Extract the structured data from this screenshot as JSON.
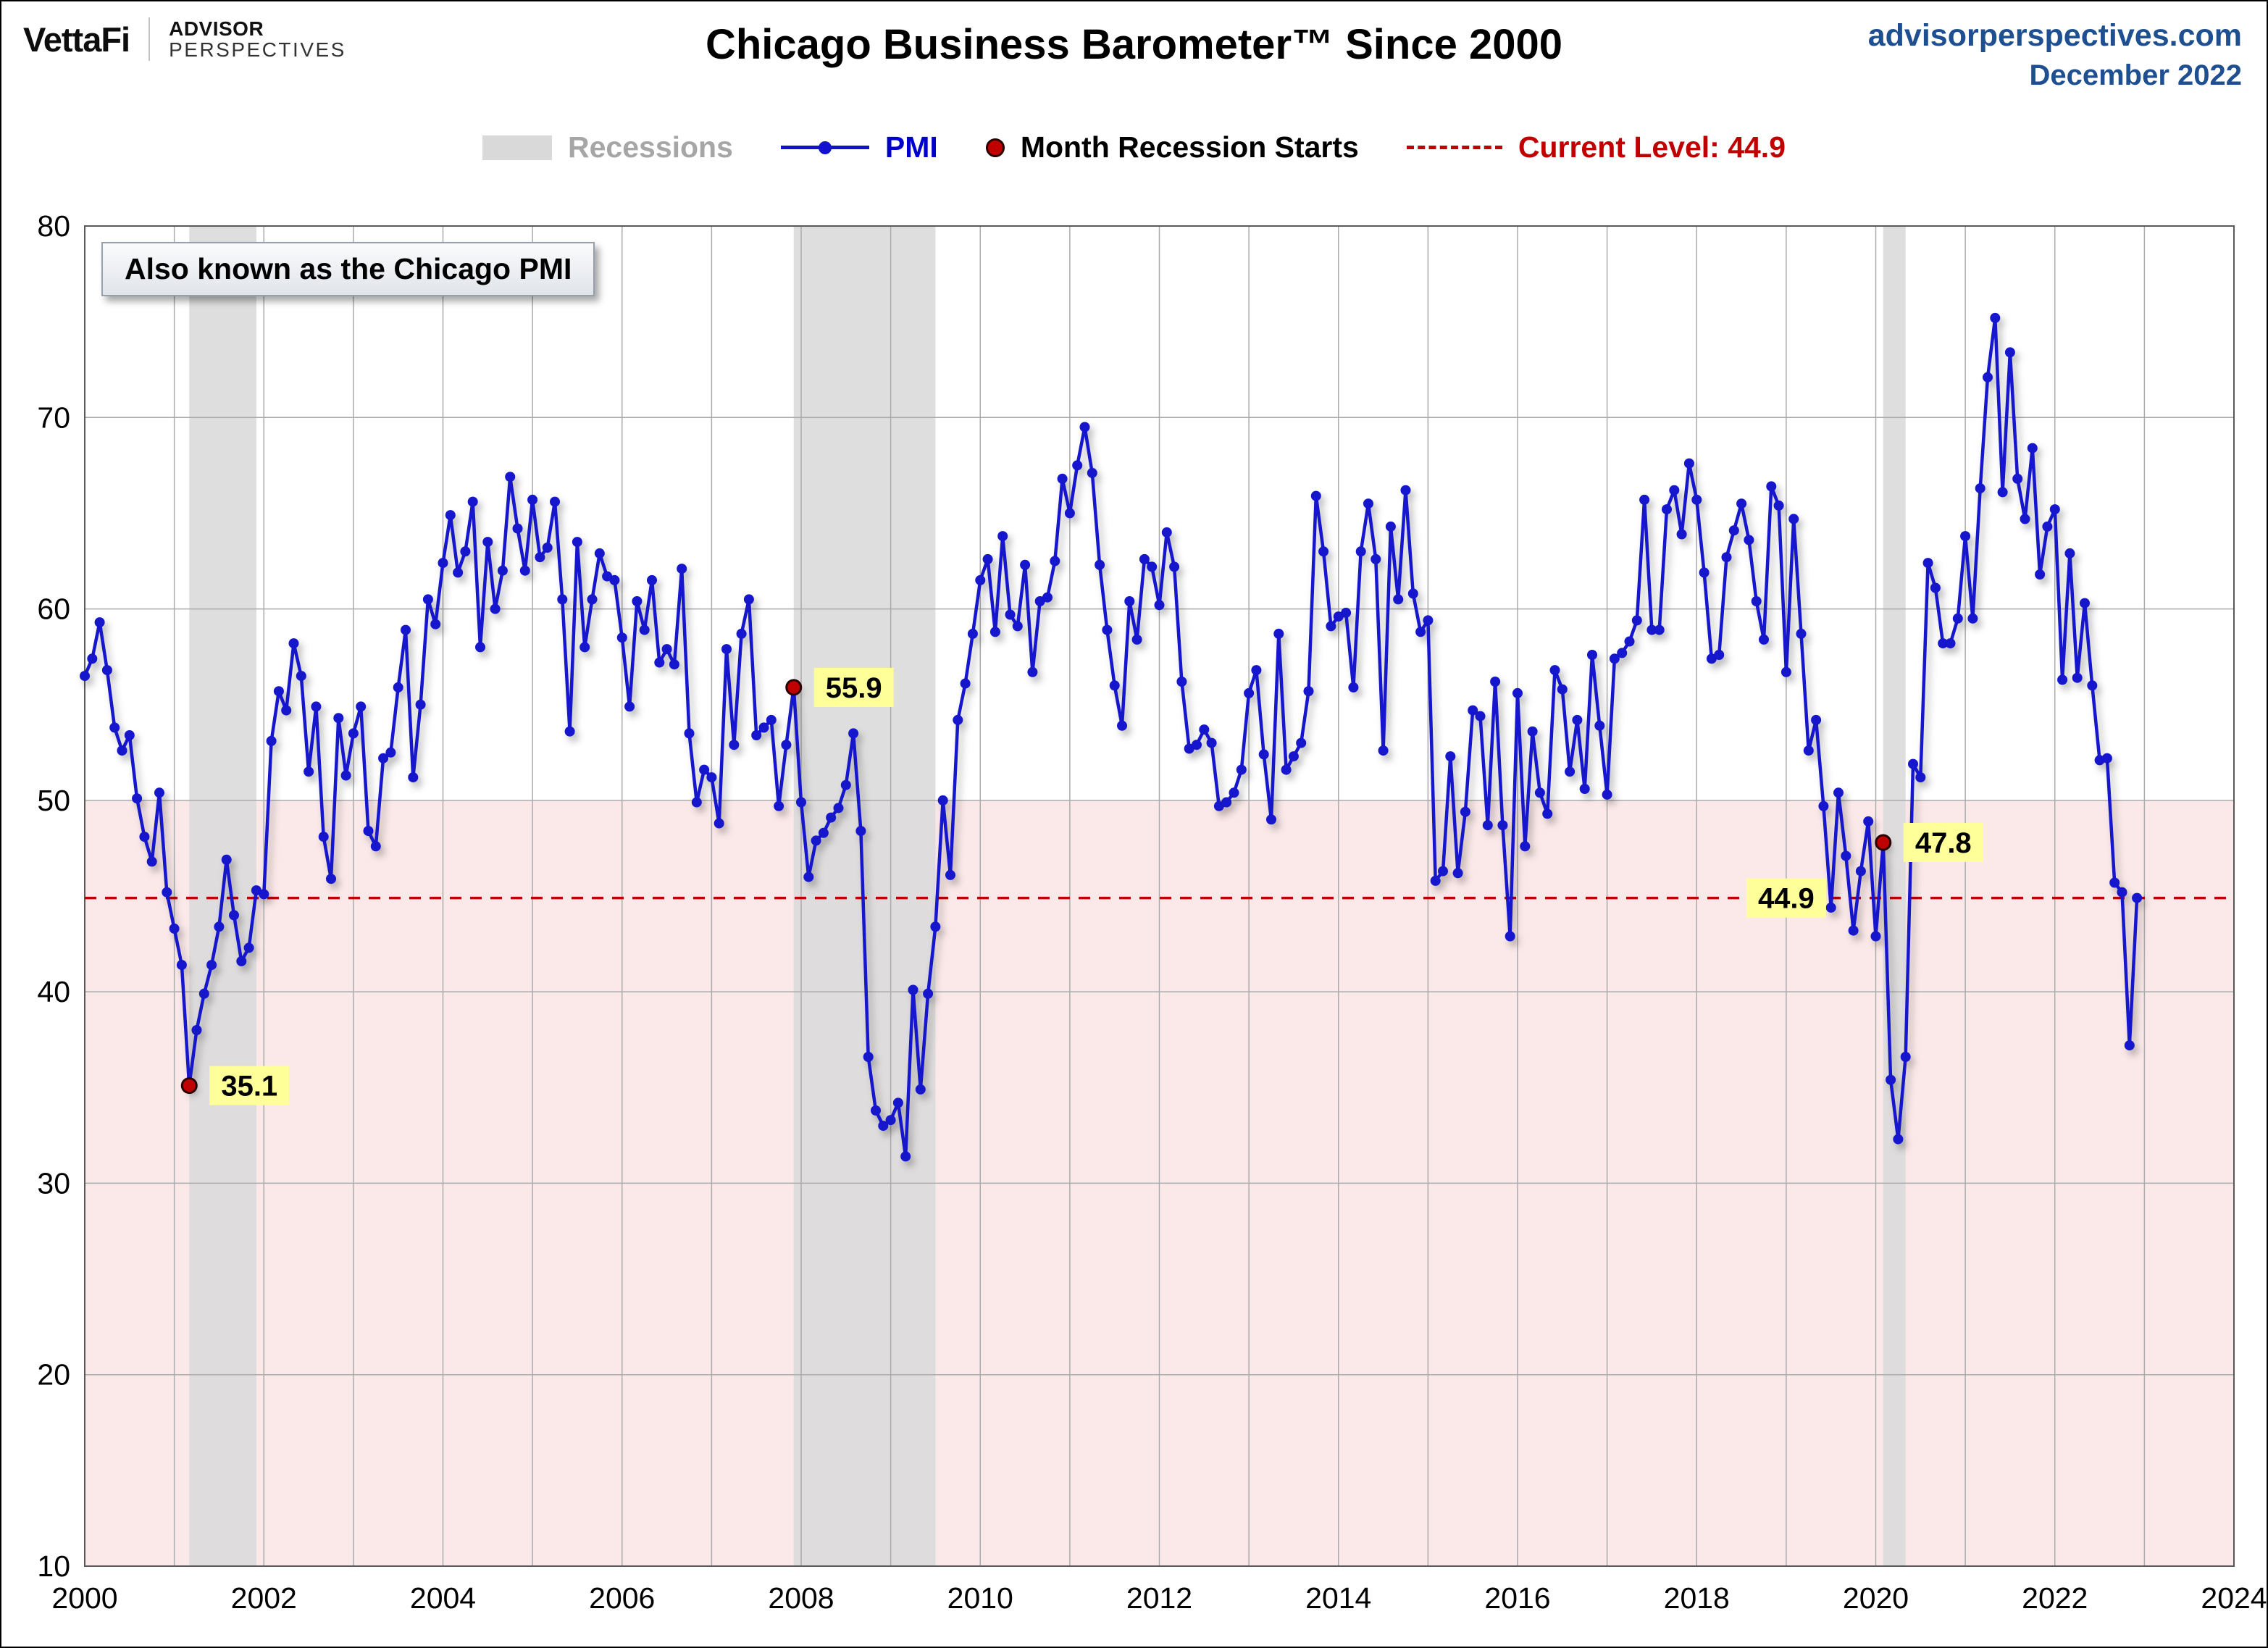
{
  "header": {
    "brand": "VettaFi",
    "brand2_line1": "ADVISOR",
    "brand2_line2": "PERSPECTIVES",
    "title": "Chicago Business Barometer™ Since 2000",
    "site": "advisorperspectives.com",
    "date": "December 2022"
  },
  "legend": {
    "recessions": "Recessions",
    "pmi": "PMI",
    "recession_start": "Month Recession Starts",
    "current_level": "Current Level: 44.9"
  },
  "annotation": "Also known as the Chicago PMI",
  "colors": {
    "line_blue": "#1212cc",
    "legend_blue": "#0000cc",
    "red": "#c00000",
    "dot_edge": "#2a0000",
    "pink_zone": "#fbe9e9",
    "recession_band": "#d9d9d9",
    "grid": "#ababab",
    "frame": "#595959",
    "yellow_tag": "#ffff99",
    "header_blue": "#1d4f91",
    "recessions_gray": "#a6a6a6"
  },
  "chart_data": {
    "type": "line",
    "title": "Chicago Business Barometer™ Since 2000",
    "xlabel": "",
    "ylabel": "",
    "x_range": [
      2000,
      2024
    ],
    "x_ticks": [
      2000,
      2002,
      2004,
      2006,
      2008,
      2010,
      2012,
      2014,
      2016,
      2018,
      2020,
      2022,
      2024
    ],
    "ylim": [
      10,
      80
    ],
    "y_ticks": [
      10,
      20,
      30,
      40,
      50,
      60,
      70,
      80
    ],
    "grid": true,
    "legend_position": "top",
    "below_threshold_shading": {
      "threshold": 50
    },
    "current_level": 44.9,
    "current_level_label": {
      "x": 2019.0,
      "text": "44.9"
    },
    "recessions": [
      [
        2001.167,
        2001.917
      ],
      [
        2007.917,
        2009.5
      ],
      [
        2020.083,
        2020.333
      ]
    ],
    "recession_start_points": [
      {
        "x": 2001.167,
        "y": 35.1,
        "label": "35.1"
      },
      {
        "x": 2007.917,
        "y": 55.9,
        "label": "55.9"
      },
      {
        "x": 2020.083,
        "y": 47.8,
        "label": "47.8"
      }
    ],
    "series": [
      {
        "name": "PMI",
        "start": "2000-01",
        "frequency": "monthly",
        "values": [
          56.5,
          57.4,
          59.3,
          56.8,
          53.8,
          52.6,
          53.4,
          50.1,
          48.1,
          46.8,
          50.4,
          45.2,
          43.3,
          41.4,
          35.1,
          38.0,
          39.9,
          41.4,
          43.4,
          46.9,
          44.0,
          41.6,
          42.3,
          45.3,
          45.1,
          53.1,
          55.7,
          54.7,
          58.2,
          56.5,
          51.5,
          54.9,
          48.1,
          45.9,
          54.3,
          51.3,
          53.5,
          54.9,
          48.4,
          47.6,
          52.2,
          52.5,
          55.9,
          58.9,
          51.2,
          55.0,
          60.5,
          59.2,
          62.4,
          64.9,
          61.9,
          63.0,
          65.6,
          58.0,
          63.5,
          60.0,
          62.0,
          66.9,
          64.2,
          62.0,
          65.7,
          62.7,
          63.2,
          65.6,
          60.5,
          53.6,
          63.5,
          58.0,
          60.5,
          62.9,
          61.7,
          61.5,
          58.5,
          54.9,
          60.4,
          58.9,
          61.5,
          57.2,
          57.9,
          57.1,
          62.1,
          53.5,
          49.9,
          51.6,
          51.2,
          48.8,
          57.9,
          52.9,
          58.7,
          60.5,
          53.4,
          53.8,
          54.2,
          49.7,
          52.9,
          55.9,
          49.9,
          46.0,
          47.9,
          48.3,
          49.1,
          49.6,
          50.8,
          53.5,
          48.4,
          36.6,
          33.8,
          33.0,
          33.3,
          34.2,
          31.4,
          40.1,
          34.9,
          39.9,
          43.4,
          50.0,
          46.1,
          54.2,
          56.1,
          58.7,
          61.5,
          62.6,
          58.8,
          63.8,
          59.7,
          59.1,
          62.3,
          56.7,
          60.4,
          60.6,
          62.5,
          66.8,
          65.0,
          67.5,
          69.5,
          67.1,
          62.3,
          58.9,
          56.0,
          53.9,
          60.4,
          58.4,
          62.6,
          62.2,
          60.2,
          64.0,
          62.2,
          56.2,
          52.7,
          52.9,
          53.7,
          53.0,
          49.7,
          49.9,
          50.4,
          51.6,
          55.6,
          56.8,
          52.4,
          49.0,
          58.7,
          51.6,
          52.3,
          53.0,
          55.7,
          65.9,
          63.0,
          59.1,
          59.6,
          59.8,
          55.9,
          63.0,
          65.5,
          62.6,
          52.6,
          64.3,
          60.5,
          66.2,
          60.8,
          58.8,
          59.4,
          45.8,
          46.3,
          52.3,
          46.2,
          49.4,
          54.7,
          54.4,
          48.7,
          56.2,
          48.7,
          42.9,
          55.6,
          47.6,
          53.6,
          50.4,
          49.3,
          56.8,
          55.8,
          51.5,
          54.2,
          50.6,
          57.6,
          53.9,
          50.3,
          57.4,
          57.7,
          58.3,
          59.4,
          65.7,
          58.9,
          58.9,
          65.2,
          66.2,
          63.9,
          67.6,
          65.7,
          61.9,
          57.4,
          57.6,
          62.7,
          64.1,
          65.5,
          63.6,
          60.4,
          58.4,
          66.4,
          65.4,
          56.7,
          64.7,
          58.7,
          52.6,
          54.2,
          49.7,
          44.4,
          50.4,
          47.1,
          43.2,
          46.3,
          48.9,
          42.9,
          47.8,
          35.4,
          32.3,
          36.6,
          51.9,
          51.2,
          62.4,
          61.1,
          58.2,
          58.2,
          59.5,
          63.8,
          59.5,
          66.3,
          72.1,
          75.2,
          66.1,
          73.4,
          66.8,
          64.7,
          68.4,
          61.8,
          64.3,
          65.2,
          56.3,
          62.9,
          56.4,
          60.3,
          56.0,
          52.1,
          52.2,
          45.7,
          45.2,
          37.2,
          44.9
        ]
      }
    ]
  }
}
